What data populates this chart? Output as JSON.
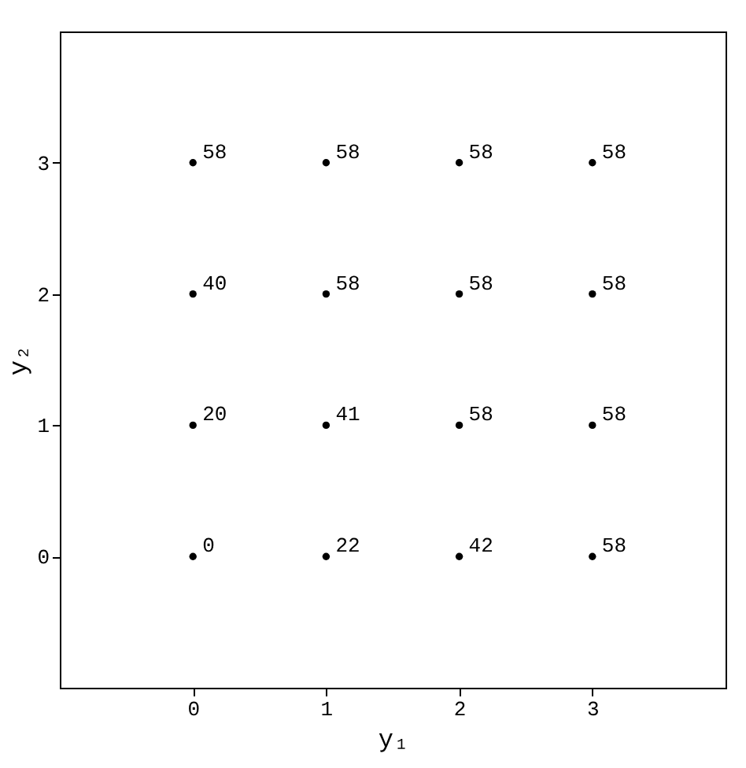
{
  "chart_data": {
    "type": "scatter",
    "xlabel": "y₁",
    "ylabel": "y₂",
    "x": [
      0,
      1,
      2,
      3,
      0,
      1,
      2,
      3,
      0,
      1,
      2,
      3,
      0,
      1,
      2,
      3
    ],
    "values": [
      3,
      3,
      3,
      3,
      2,
      2,
      2,
      2,
      1,
      1,
      1,
      1,
      0,
      0,
      0,
      0
    ],
    "annotations": [
      {
        "text": "58",
        "x": 0,
        "y": 3
      },
      {
        "text": "58",
        "x": 1,
        "y": 3
      },
      {
        "text": "58",
        "x": 2,
        "y": 3
      },
      {
        "text": "58",
        "x": 3,
        "y": 3
      },
      {
        "text": "40",
        "x": 0,
        "y": 2
      },
      {
        "text": "58",
        "x": 1,
        "y": 2
      },
      {
        "text": "58",
        "x": 2,
        "y": 2
      },
      {
        "text": "58",
        "x": 3,
        "y": 2
      },
      {
        "text": "20",
        "x": 0,
        "y": 1
      },
      {
        "text": "41",
        "x": 1,
        "y": 1
      },
      {
        "text": "58",
        "x": 2,
        "y": 1
      },
      {
        "text": "58",
        "x": 3,
        "y": 1
      },
      {
        "text": "0",
        "x": 0,
        "y": 0
      },
      {
        "text": "22",
        "x": 1,
        "y": 0
      },
      {
        "text": "42",
        "x": 2,
        "y": 0
      },
      {
        "text": "58",
        "x": 3,
        "y": 0
      }
    ],
    "color": "#000000",
    "marker": "circle",
    "xlim": [
      -1,
      4
    ],
    "xticks": [
      0,
      1,
      2,
      3
    ],
    "ylim": [
      -1,
      4
    ],
    "yticks": [
      0,
      1,
      2,
      3
    ],
    "grid": false
  }
}
